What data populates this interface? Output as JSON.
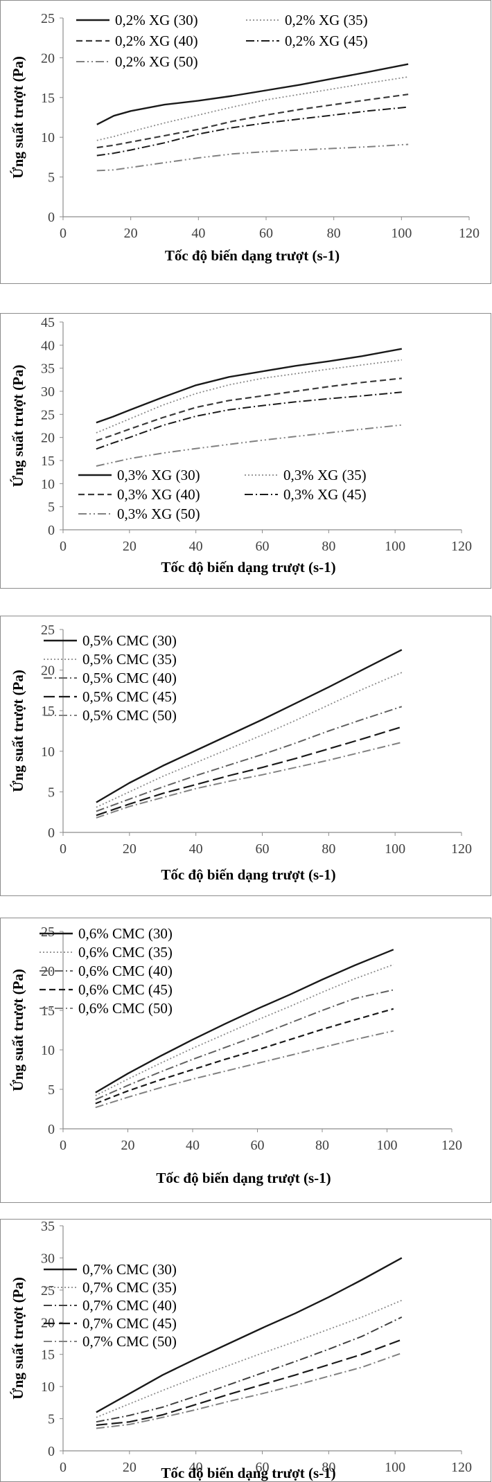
{
  "chart_data": [
    {
      "type": "line",
      "xlabel": "Tốc độ biến dạng trượt (s-1)",
      "ylabel": "Ứng suất trượt (Pa)",
      "xlim": [
        0,
        120
      ],
      "ylim": [
        0,
        25
      ],
      "xticks": [
        0,
        20,
        40,
        60,
        80,
        100,
        120
      ],
      "yticks": [
        0,
        5,
        10,
        15,
        20,
        25
      ],
      "legend_position": "top",
      "legend_columns": 2,
      "x": [
        10,
        15,
        20,
        30,
        40,
        50,
        60,
        70,
        80,
        90,
        102
      ],
      "series": [
        {
          "name": "0,2% XG (30)",
          "style": "solid",
          "color": "#1a1a1a",
          "values": [
            11.6,
            12.7,
            13.3,
            14.1,
            14.6,
            15.2,
            15.9,
            16.6,
            17.4,
            18.2,
            19.2
          ]
        },
        {
          "name": "0,2% XG (35)",
          "style": "dotted",
          "color": "#8a8a8a",
          "values": [
            9.6,
            10.1,
            10.7,
            11.8,
            12.8,
            13.8,
            14.7,
            15.4,
            16.1,
            16.8,
            17.6
          ]
        },
        {
          "name": "0,2% XG (40)",
          "style": "dashed",
          "color": "#3a3a3a",
          "values": [
            8.7,
            9.0,
            9.4,
            10.2,
            11.0,
            12.0,
            12.8,
            13.5,
            14.1,
            14.7,
            15.4
          ]
        },
        {
          "name": "0,2% XG (45)",
          "style": "dashdot",
          "color": "#1a1a1a",
          "values": [
            7.7,
            8.0,
            8.4,
            9.3,
            10.4,
            11.2,
            11.8,
            12.3,
            12.8,
            13.3,
            13.8
          ]
        },
        {
          "name": "0,2% XG (50)",
          "style": "dashdotdot",
          "color": "#808080",
          "values": [
            5.8,
            5.9,
            6.2,
            6.8,
            7.4,
            7.9,
            8.2,
            8.4,
            8.6,
            8.8,
            9.1
          ]
        }
      ]
    },
    {
      "type": "line",
      "xlabel": "Tốc độ biến dạng trượt (s-1)",
      "ylabel": "Ứng suất trượt (Pa)",
      "xlim": [
        0,
        120
      ],
      "ylim": [
        0,
        45
      ],
      "xticks": [
        0,
        20,
        40,
        60,
        80,
        100,
        120
      ],
      "yticks": [
        0,
        5,
        10,
        15,
        20,
        25,
        30,
        35,
        40,
        45
      ],
      "legend_position": "bottom",
      "legend_columns": 2,
      "x": [
        10,
        15,
        20,
        30,
        40,
        50,
        60,
        70,
        80,
        90,
        102
      ],
      "series": [
        {
          "name": "0,3% XG (30)",
          "style": "solid",
          "color": "#1a1a1a",
          "values": [
            23.2,
            24.5,
            25.9,
            28.7,
            31.3,
            33.1,
            34.3,
            35.5,
            36.5,
            37.6,
            39.2
          ]
        },
        {
          "name": "0,3% XG (35)",
          "style": "dotted",
          "color": "#8a8a8a",
          "values": [
            21.0,
            22.5,
            24.0,
            27.0,
            29.5,
            31.4,
            32.8,
            33.8,
            34.8,
            35.7,
            36.8
          ]
        },
        {
          "name": "0,3% XG (40)",
          "style": "dashed",
          "color": "#3a3a3a",
          "values": [
            19.3,
            20.5,
            21.8,
            24.3,
            26.5,
            28.0,
            29.0,
            30.0,
            31.0,
            31.9,
            32.8
          ]
        },
        {
          "name": "0,3% XG (45)",
          "style": "dashdot",
          "color": "#1a1a1a",
          "values": [
            17.5,
            18.8,
            20.0,
            22.6,
            24.6,
            26.0,
            26.9,
            27.7,
            28.4,
            29.0,
            29.8
          ]
        },
        {
          "name": "0,3% XG (50)",
          "style": "dashdotdot",
          "color": "#808080",
          "values": [
            13.8,
            14.6,
            15.4,
            16.6,
            17.6,
            18.5,
            19.4,
            20.2,
            21.0,
            21.8,
            22.7
          ]
        }
      ]
    },
    {
      "type": "line",
      "xlabel": "Tốc độ biến dạng trượt (s-1)",
      "ylabel": "Ứng suất trượt (Pa)",
      "xlim": [
        0,
        120
      ],
      "ylim": [
        0,
        25
      ],
      "xticks": [
        0,
        20,
        40,
        60,
        80,
        100,
        120
      ],
      "yticks": [
        0,
        5,
        10,
        15,
        20,
        25
      ],
      "legend_position": "top-left",
      "legend_columns": 1,
      "x": [
        10,
        20,
        30,
        40,
        50,
        60,
        70,
        80,
        90,
        102
      ],
      "series": [
        {
          "name": "0,5% CMC (30)",
          "style": "solid",
          "color": "#1a1a1a",
          "values": [
            3.7,
            6.1,
            8.2,
            10.1,
            12.0,
            13.9,
            15.9,
            17.9,
            20.0,
            22.5
          ]
        },
        {
          "name": "0,5% CMC (35)",
          "style": "dotted",
          "color": "#8a8a8a",
          "values": [
            3.1,
            5.0,
            6.9,
            8.6,
            10.3,
            12.0,
            13.8,
            15.7,
            17.6,
            19.7
          ]
        },
        {
          "name": "0,5% CMC (40)",
          "style": "dashdot",
          "color": "#606060",
          "values": [
            2.6,
            4.1,
            5.6,
            7.0,
            8.3,
            9.6,
            11.0,
            12.5,
            13.9,
            15.5
          ]
        },
        {
          "name": "0,5% CMC (45)",
          "style": "longdash",
          "color": "#1a1a1a",
          "values": [
            2.1,
            3.5,
            4.8,
            5.9,
            7.0,
            8.0,
            9.1,
            10.3,
            11.5,
            13.0
          ]
        },
        {
          "name": "0,5% CMC (50)",
          "style": "dashdot",
          "color": "#808080",
          "values": [
            1.8,
            3.2,
            4.3,
            5.4,
            6.3,
            7.1,
            8.0,
            8.9,
            9.9,
            11.1
          ]
        }
      ]
    },
    {
      "type": "line",
      "xlabel": "Tốc độ biến dạng trượt (s-1)",
      "ylabel": "Ứng suất trượt (Pa)",
      "xlim": [
        0,
        120
      ],
      "ylim": [
        0,
        25
      ],
      "xticks": [
        0,
        20,
        40,
        60,
        80,
        100,
        120
      ],
      "yticks": [
        0,
        5,
        10,
        15,
        20,
        25
      ],
      "legend_position": "top-left",
      "legend_columns": 1,
      "x": [
        10,
        20,
        30,
        40,
        50,
        60,
        70,
        80,
        90,
        102
      ],
      "series": [
        {
          "name": "0,6% CMC (30)",
          "style": "solid",
          "color": "#1a1a1a",
          "values": [
            4.6,
            7.0,
            9.2,
            11.3,
            13.3,
            15.2,
            17.0,
            18.9,
            20.7,
            22.7
          ]
        },
        {
          "name": "0,6% CMC (35)",
          "style": "dotted",
          "color": "#8a8a8a",
          "values": [
            4.2,
            6.3,
            8.3,
            10.2,
            12.0,
            13.8,
            15.5,
            17.3,
            19.0,
            20.8
          ]
        },
        {
          "name": "0,6% CMC (40)",
          "style": "dashdot",
          "color": "#606060",
          "values": [
            3.7,
            5.5,
            7.2,
            8.8,
            10.3,
            11.8,
            13.4,
            15.0,
            16.5,
            17.6
          ]
        },
        {
          "name": "0,6% CMC (45)",
          "style": "dashed",
          "color": "#1a1a1a",
          "values": [
            3.2,
            4.8,
            6.2,
            7.5,
            8.8,
            10.0,
            11.3,
            12.6,
            13.8,
            15.2
          ]
        },
        {
          "name": "0,6% CMC (50)",
          "style": "dashdot",
          "color": "#808080",
          "values": [
            2.7,
            4.0,
            5.2,
            6.3,
            7.3,
            8.3,
            9.3,
            10.3,
            11.3,
            12.4
          ]
        }
      ]
    },
    {
      "type": "line",
      "xlabel": "Tốc độ biến dạng trượt (s-1)",
      "ylabel": "Ứng suất trượt (Pa)",
      "xlim": [
        0,
        120
      ],
      "ylim": [
        0,
        35
      ],
      "xticks": [
        0,
        20,
        40,
        60,
        80,
        100,
        120
      ],
      "yticks": [
        0,
        5,
        10,
        15,
        20,
        25,
        30,
        35
      ],
      "legend_position": "top-left",
      "legend_columns": 1,
      "x": [
        10,
        20,
        30,
        40,
        50,
        60,
        70,
        80,
        90,
        102
      ],
      "series": [
        {
          "name": "0,7% CMC (30)",
          "style": "solid",
          "color": "#1a1a1a",
          "values": [
            6.0,
            8.9,
            11.8,
            14.3,
            16.7,
            19.1,
            21.4,
            23.9,
            26.6,
            30.0
          ]
        },
        {
          "name": "0,7% CMC (35)",
          "style": "dotted",
          "color": "#8a8a8a",
          "values": [
            5.2,
            7.3,
            9.4,
            11.4,
            13.3,
            15.2,
            17.0,
            18.9,
            20.8,
            23.4
          ]
        },
        {
          "name": "0,7% CMC (40)",
          "style": "dashdot",
          "color": "#404040",
          "values": [
            4.5,
            5.5,
            6.8,
            8.5,
            10.3,
            12.1,
            13.9,
            15.8,
            17.8,
            20.8
          ]
        },
        {
          "name": "0,7% CMC (45)",
          "style": "longdash",
          "color": "#1a1a1a",
          "values": [
            4.0,
            4.5,
            5.6,
            7.2,
            8.8,
            10.3,
            11.8,
            13.4,
            15.0,
            17.3
          ]
        },
        {
          "name": "0,7% CMC (50)",
          "style": "dashdot",
          "color": "#808080",
          "values": [
            3.5,
            4.1,
            5.2,
            6.4,
            7.7,
            8.9,
            10.2,
            11.6,
            13.0,
            15.2
          ]
        }
      ]
    }
  ]
}
